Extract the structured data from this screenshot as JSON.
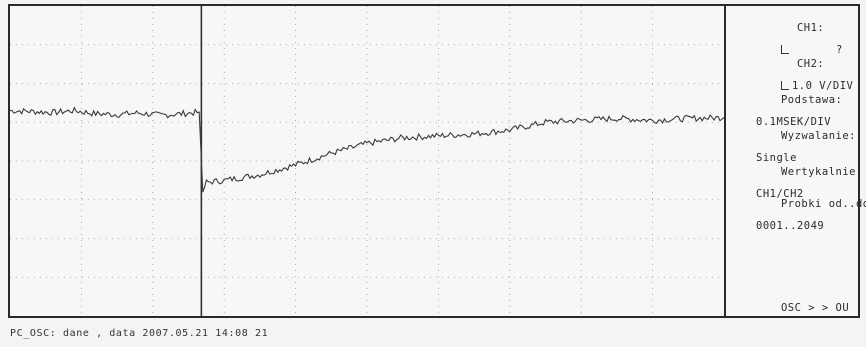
{
  "window": {
    "status_bar": "PC_OSC: dane , data 2007.05.21 14:08 21"
  },
  "side_panel": {
    "ch1_label": "CH1:",
    "ch1_value": "?",
    "ch2_label": "CH2:",
    "ch2_value": "1.0 V/DIV",
    "podstawa_label": "Podstawa:",
    "podstawa_value": "0.1MSEK/DIV",
    "wyzwalanie_label": "Wyzwalanie:",
    "wyzwalanie_value": "Single",
    "wertykalnie_label": "Wertykalnie:",
    "wertykalnie_value": "CH1/CH2",
    "probki_label": "Probki od..do",
    "probki_value": "0001..2049",
    "osc_label": "OSC > > OU"
  },
  "chart_data": {
    "type": "line",
    "series": [
      {
        "x": [
          0,
          0.3,
          0.6,
          0.9,
          1.2,
          1.5,
          1.8,
          2.1,
          2.4,
          2.65,
          2.7,
          2.75,
          3.0,
          3.5,
          4.0,
          4.5,
          5.0,
          5.5,
          6.0,
          6.5,
          7.0,
          7.5,
          8.0,
          8.5,
          9.0,
          9.5,
          10.0
        ],
        "y": [
          1.3,
          1.28,
          1.25,
          1.3,
          1.22,
          1.2,
          1.24,
          1.18,
          1.22,
          1.26,
          -0.8,
          -0.55,
          -0.5,
          -0.35,
          -0.1,
          0.2,
          0.45,
          0.6,
          0.65,
          0.7,
          0.8,
          1.0,
          1.05,
          1.1,
          1.05,
          1.1,
          1.12
        ]
      }
    ],
    "xlim": [
      0,
      10
    ],
    "ylim": [
      -4,
      4
    ],
    "grid": true
  }
}
